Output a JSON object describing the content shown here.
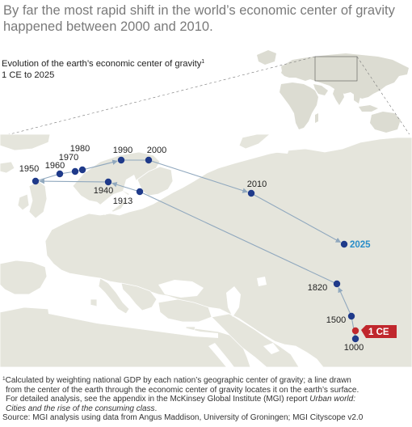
{
  "headline": {
    "line1": "By far the most rapid shift in the world’s economic center of gravity",
    "line2": "happened between 2000 and 2010."
  },
  "subtitle": {
    "title": "Evolution of the earth’s economic center of gravity",
    "footnote_marker": "1",
    "range": "1 CE to 2025"
  },
  "map": {
    "colors": {
      "ocean": "#ffffff",
      "land": "#e5e5dc",
      "border": "#ffffff",
      "path": "#90a8be",
      "point": "#1f3a8a",
      "highlight": "#c0272d",
      "projection": "#2a8ec8",
      "label": "#222222"
    },
    "points": [
      {
        "label": "1 CE",
        "kind": "start"
      },
      {
        "label": "1000",
        "kind": "normal"
      },
      {
        "label": "1500",
        "kind": "normal"
      },
      {
        "label": "1820",
        "kind": "normal"
      },
      {
        "label": "1913",
        "kind": "normal"
      },
      {
        "label": "1940",
        "kind": "normal"
      },
      {
        "label": "1950",
        "kind": "normal"
      },
      {
        "label": "1960",
        "kind": "normal"
      },
      {
        "label": "1970",
        "kind": "normal"
      },
      {
        "label": "1980",
        "kind": "normal"
      },
      {
        "label": "1990",
        "kind": "normal"
      },
      {
        "label": "2000",
        "kind": "normal"
      },
      {
        "label": "2010",
        "kind": "normal"
      },
      {
        "label": "2025",
        "kind": "projection"
      }
    ]
  },
  "footer": {
    "note_marker": "1",
    "note_line1": "Calculated by weighting national GDP by each nation’s geographic center of gravity; a line drawn",
    "note_line2": "from the center of the earth through the economic center of gravity locates it on the earth’s surface.",
    "note_line3a": "For detailed analysis, see the appendix in the McKinsey Global Institute (MGI) report ",
    "note_line3b": "Urban world:",
    "note_line4": "Cities and the rise of the consuming class",
    "note_line4_end": ".",
    "source": "Source: MGI analysis using data from Angus Maddison, University of Groningen; MGI Cityscope v2.0"
  }
}
